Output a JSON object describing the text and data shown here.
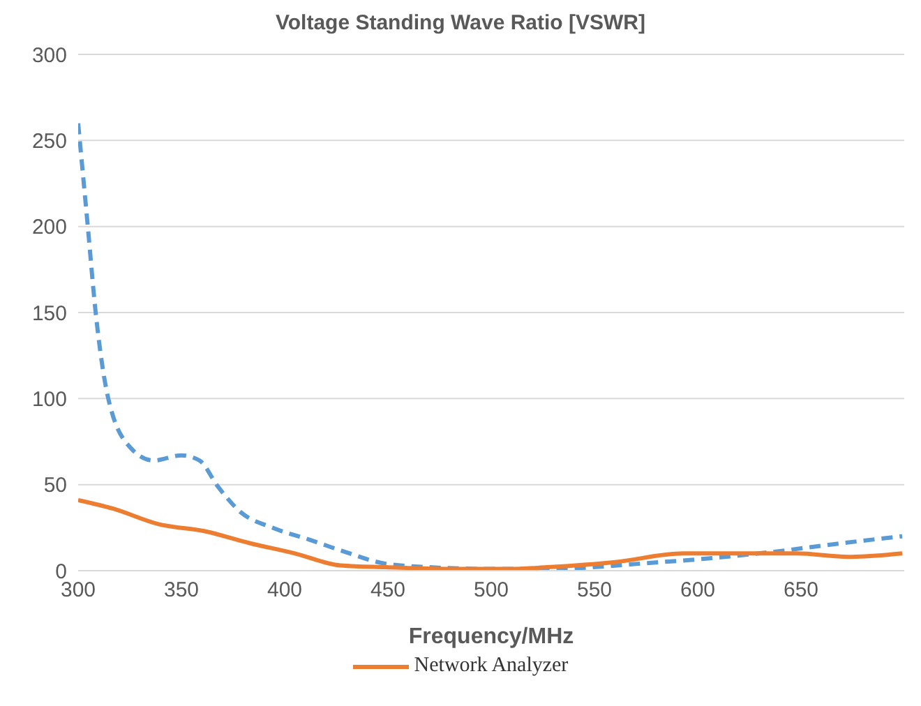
{
  "chart_data": {
    "type": "line",
    "title": "Voltage Standing Wave Ratio [VSWR]",
    "xlabel": "Frequency/MHz",
    "xlim": [
      300,
      700
    ],
    "xticks": [
      300,
      350,
      400,
      450,
      500,
      550,
      600,
      650
    ],
    "ylim": [
      0,
      300
    ],
    "yticks": [
      0,
      50,
      100,
      150,
      200,
      250,
      300
    ],
    "grid": "y",
    "legend": "bottom",
    "marker": "none",
    "series": [
      {
        "color": "#5b9bd5",
        "line_style": "dashed",
        "x": [
          300,
          304.6,
          308.4,
          314.6,
          325.7,
          336.5,
          350,
          358.8,
          367.6,
          378.7,
          394,
          412,
          429,
          449,
          470,
          500,
          530,
          549,
          571,
          604,
          637,
          670,
          699
        ],
        "values": [
          260,
          201,
          151,
          100,
          71,
          64,
          67,
          64,
          49,
          34,
          25,
          18,
          11,
          4,
          2,
          1,
          1,
          2,
          4,
          7,
          11,
          16,
          20
        ]
      },
      {
        "name": "Network Analyzer",
        "color": "#ed7d31",
        "line_style": "solid",
        "x": [
          300,
          317,
          339,
          361,
          383,
          405,
          427,
          449,
          480,
          510,
          527,
          560,
          593,
          626,
          648,
          673,
          699
        ],
        "values": [
          41,
          36,
          27,
          23,
          16,
          10,
          3,
          2,
          1,
          1,
          2,
          5,
          10,
          10,
          10,
          8,
          10
        ]
      }
    ]
  }
}
